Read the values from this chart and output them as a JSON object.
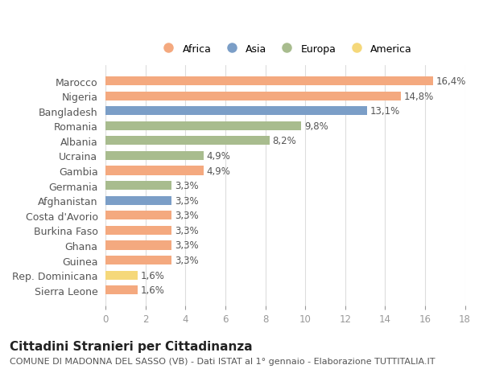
{
  "categories": [
    "Sierra Leone",
    "Rep. Dominicana",
    "Guinea",
    "Ghana",
    "Burkina Faso",
    "Costa d'Avorio",
    "Afghanistan",
    "Germania",
    "Gambia",
    "Ucraina",
    "Albania",
    "Romania",
    "Bangladesh",
    "Nigeria",
    "Marocco"
  ],
  "values": [
    1.6,
    1.6,
    3.3,
    3.3,
    3.3,
    3.3,
    3.3,
    3.3,
    4.9,
    4.9,
    8.2,
    9.8,
    13.1,
    14.8,
    16.4
  ],
  "labels": [
    "1,6%",
    "1,6%",
    "3,3%",
    "3,3%",
    "3,3%",
    "3,3%",
    "3,3%",
    "3,3%",
    "4,9%",
    "4,9%",
    "8,2%",
    "9,8%",
    "13,1%",
    "14,8%",
    "16,4%"
  ],
  "continents": [
    "Africa",
    "America",
    "Africa",
    "Africa",
    "Africa",
    "Africa",
    "Asia",
    "Europa",
    "Africa",
    "Europa",
    "Europa",
    "Europa",
    "Asia",
    "Africa",
    "Africa"
  ],
  "continent_colors": {
    "Africa": "#F4A97F",
    "Asia": "#7B9EC7",
    "Europa": "#A8BC8E",
    "America": "#F5D87A"
  },
  "legend_order": [
    "Africa",
    "Asia",
    "Europa",
    "America"
  ],
  "xlim": [
    0,
    18
  ],
  "xticks": [
    0,
    2,
    4,
    6,
    8,
    10,
    12,
    14,
    16,
    18
  ],
  "title": "Cittadini Stranieri per Cittadinanza",
  "subtitle": "COMUNE DI MADONNA DEL SASSO (VB) - Dati ISTAT al 1° gennaio - Elaborazione TUTTITALIA.IT",
  "bg_color": "#ffffff",
  "grid_color": "#dddddd",
  "bar_height": 0.6,
  "label_fontsize": 8.5,
  "ylabel_fontsize": 9,
  "title_fontsize": 11,
  "subtitle_fontsize": 8
}
